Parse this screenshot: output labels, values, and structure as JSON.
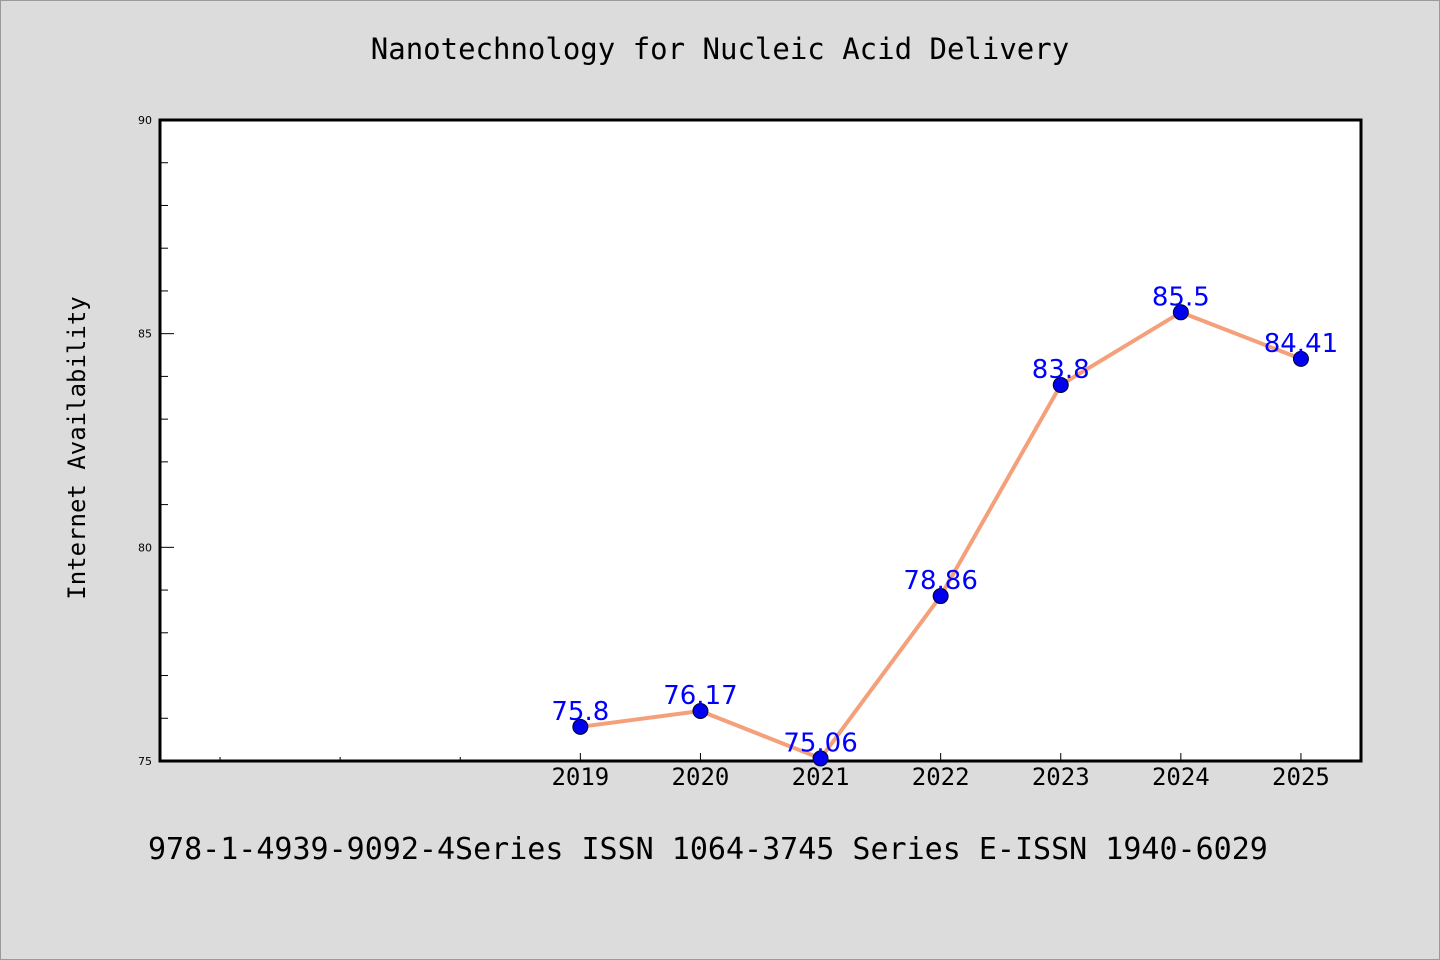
{
  "chart_data": {
    "type": "line",
    "title": "Nanotechnology for Nucleic Acid Delivery",
    "xlabel": "",
    "ylabel": "Internet Availability",
    "categories": [
      "2019",
      "2020",
      "2021",
      "2022",
      "2023",
      "2024",
      "2025"
    ],
    "x_domain": [
      2015.5,
      2025.5
    ],
    "minor_x_ticks": [
      2016,
      2017,
      2018
    ],
    "series": [
      {
        "values": [
          75.8,
          76.17,
          75.06,
          78.86,
          83.8,
          85.5,
          84.41
        ],
        "data_labels": [
          "75.8",
          "76.17",
          "75.06",
          "78.86",
          "83.8",
          "85.5",
          "84.41"
        ],
        "line_color": "#f4a07a",
        "marker_color": "#0000ee",
        "label_color": "#0000ff"
      }
    ],
    "ylim": [
      75,
      90
    ],
    "y_major_ticks": [
      75,
      80,
      85,
      90
    ],
    "y_major_tick_labels": [
      "75",
      "80",
      "85",
      "90"
    ],
    "y_minor_step": 1,
    "grid": false,
    "legend": "none"
  },
  "footer": {
    "text": "978-1-4939-9092-4Series ISSN 1064-3745 Series E-ISSN 1940-6029"
  },
  "colors": {
    "background": "#dcdcdc",
    "plot_background": "#ffffff",
    "axis": "#000000"
  }
}
